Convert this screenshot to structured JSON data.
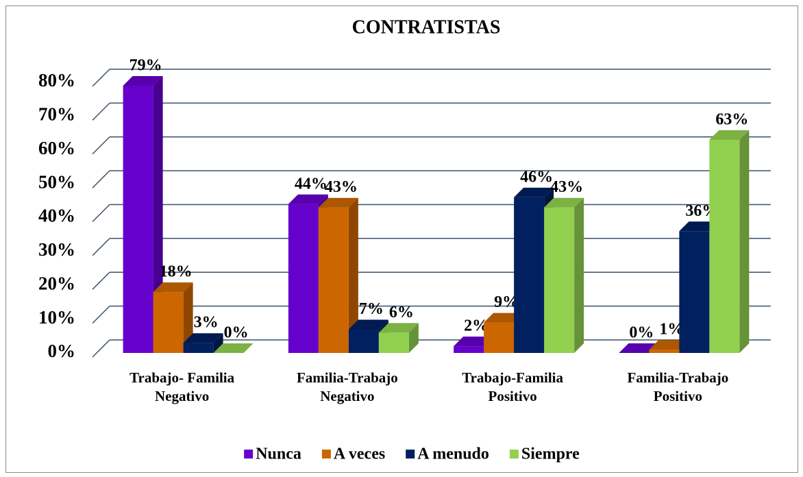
{
  "chart_data": {
    "type": "bar3d",
    "title": "CONTRATISTAS",
    "categories": [
      "Trabajo- Familia Negativo",
      "Familia-Trabajo Negativo",
      "Trabajo-Familia Positivo",
      "Familia-Trabajo Positivo"
    ],
    "series": [
      {
        "name": "Nunca",
        "color": "#6600cc",
        "values": [
          79,
          44,
          2,
          0
        ],
        "value_labels": [
          "79%",
          "44%",
          "2%",
          "0%"
        ]
      },
      {
        "name": "A veces",
        "color": "#cc6600",
        "values": [
          18,
          43,
          9,
          1
        ],
        "value_labels": [
          "18%",
          "43%",
          "9%",
          "1%"
        ]
      },
      {
        "name": "A menudo",
        "color": "#002060",
        "values": [
          3,
          7,
          46,
          36
        ],
        "value_labels": [
          "3%",
          "7%",
          "46%",
          "36%"
        ]
      },
      {
        "name": "Siempre",
        "color": "#92d050",
        "values": [
          0,
          6,
          43,
          63
        ],
        "value_labels": [
          "0%",
          "6%",
          "43%",
          "63%"
        ]
      }
    ],
    "ylim": [
      0,
      80
    ],
    "yticks": [
      {
        "value": 0,
        "label": "0%"
      },
      {
        "value": 10,
        "label": "10%"
      },
      {
        "value": 20,
        "label": "20%"
      },
      {
        "value": 30,
        "label": "30%"
      },
      {
        "value": 40,
        "label": "40%"
      },
      {
        "value": 50,
        "label": "50%"
      },
      {
        "value": 60,
        "label": "60%"
      },
      {
        "value": 70,
        "label": "70%"
      },
      {
        "value": 80,
        "label": "80%"
      }
    ],
    "grid": true,
    "legend": "bottom"
  }
}
